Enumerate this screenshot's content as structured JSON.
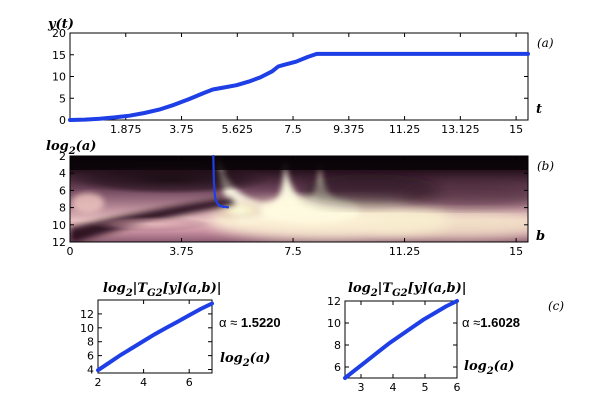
{
  "chart_data": [
    {
      "id": "a",
      "type": "line",
      "panel_label": "(a)",
      "ylabel": "y(t)",
      "xlabel": "t",
      "xlim": [
        0,
        15.4
      ],
      "ylim": [
        0,
        20
      ],
      "xticks": [
        1.875,
        3.75,
        5.625,
        7.5,
        9.375,
        11.25,
        13.125,
        15
      ],
      "xtick_labels": [
        "1.875",
        "3.75",
        "5.625",
        "7.5",
        "9.375",
        "11.25",
        "13.125",
        "15"
      ],
      "yticks": [
        0,
        5,
        10,
        15,
        20
      ],
      "ytick_labels": [
        "0",
        "5",
        "10",
        "15",
        "20"
      ],
      "line_color": "#1f3fe6",
      "series": [
        {
          "x": [
            0,
            0.5,
            1,
            1.5,
            2,
            2.5,
            3,
            3.5,
            4,
            4.5,
            4.8,
            5.2,
            5.6,
            6.0,
            6.4,
            6.8,
            7.0,
            7.2,
            7.6,
            8.0,
            8.3,
            9,
            10,
            11,
            12,
            13,
            14,
            15,
            15.4
          ],
          "y": [
            0,
            0.1,
            0.3,
            0.6,
            1.0,
            1.6,
            2.4,
            3.5,
            4.8,
            6.2,
            7.0,
            7.5,
            8.0,
            8.8,
            9.8,
            11.2,
            12.3,
            12.7,
            13.4,
            14.5,
            15.2,
            15.2,
            15.2,
            15.2,
            15.2,
            15.2,
            15.2,
            15.2,
            15.2
          ]
        }
      ]
    },
    {
      "id": "b",
      "type": "heatmap",
      "panel_label": "(b)",
      "ylabel_main": "log",
      "ylabel_sub": "2",
      "ylabel_tail": "(a)",
      "xlabel": "b",
      "xlim": [
        0,
        15.4
      ],
      "ylim": [
        2,
        12
      ],
      "xticks": [
        0,
        3.75,
        7.5,
        11.25,
        15
      ],
      "xtick_labels": [
        "0",
        "3.75",
        "7.5",
        "11.25",
        "15"
      ],
      "yticks": [
        2,
        4,
        6,
        8,
        10,
        12
      ],
      "ytick_labels": [
        "2",
        "4",
        "6",
        "8",
        "10",
        "12"
      ],
      "ridge_color": "#1f3fe6",
      "ridge": {
        "x": [
          4.82,
          4.83,
          4.84,
          4.86,
          4.88,
          4.92,
          4.98,
          5.05,
          5.15,
          5.3
        ],
        "y": [
          2.0,
          3.5,
          5.0,
          6.0,
          6.8,
          7.3,
          7.6,
          7.8,
          7.9,
          7.95
        ]
      }
    },
    {
      "id": "c1",
      "type": "line",
      "panel_label": "(c)",
      "ylabel_main": "log",
      "ylabel_sub": "2",
      "ylabel_tail": "|T",
      "ylabel_sub2": "G2",
      "ylabel_tail2": "[y](a,b)|",
      "xlabel_main": "log",
      "xlabel_sub": "2",
      "xlabel_tail": "(a)",
      "alpha_prefix": "α ≈ ",
      "alpha_value": "1.5220",
      "xlim": [
        2,
        7
      ],
      "ylim": [
        3.5,
        14
      ],
      "xticks": [
        2,
        4,
        6
      ],
      "xtick_labels": [
        "2",
        "4",
        "6"
      ],
      "yticks": [
        4,
        6,
        8,
        10,
        12
      ],
      "ytick_labels": [
        "4",
        "6",
        "8",
        "10",
        "12"
      ],
      "line_color": "#1f3fe6",
      "series": [
        {
          "x": [
            2,
            2.5,
            3,
            3.5,
            4,
            4.5,
            5,
            5.5,
            6,
            6.5,
            7
          ],
          "y": [
            3.9,
            5.0,
            6.1,
            7.1,
            8.1,
            9.1,
            10.0,
            10.9,
            11.8,
            12.7,
            13.5
          ]
        }
      ]
    },
    {
      "id": "c2",
      "type": "line",
      "ylabel_main": "log",
      "ylabel_sub": "2",
      "ylabel_tail": "|T",
      "ylabel_sub2": "G2",
      "ylabel_tail2": "[y](a,b)|",
      "xlabel_main": "log",
      "xlabel_sub": "2",
      "xlabel_tail": "(a)",
      "alpha_prefix": "α ≈",
      "alpha_value": "1.6028",
      "xlim": [
        2.5,
        6
      ],
      "ylim": [
        5,
        12
      ],
      "xticks": [
        3,
        4,
        5,
        6
      ],
      "xtick_labels": [
        "3",
        "4",
        "5",
        "6"
      ],
      "yticks": [
        6,
        8,
        10,
        12
      ],
      "ytick_labels": [
        "6",
        "8",
        "10",
        "12"
      ],
      "line_color": "#1f3fe6",
      "series": [
        {
          "x": [
            2.5,
            2.85,
            3.2,
            3.55,
            3.9,
            4.25,
            4.6,
            4.95,
            5.3,
            5.65,
            6.0
          ],
          "y": [
            5.0,
            5.8,
            6.6,
            7.4,
            8.2,
            8.9,
            9.6,
            10.3,
            10.9,
            11.5,
            12.0
          ]
        }
      ]
    }
  ]
}
